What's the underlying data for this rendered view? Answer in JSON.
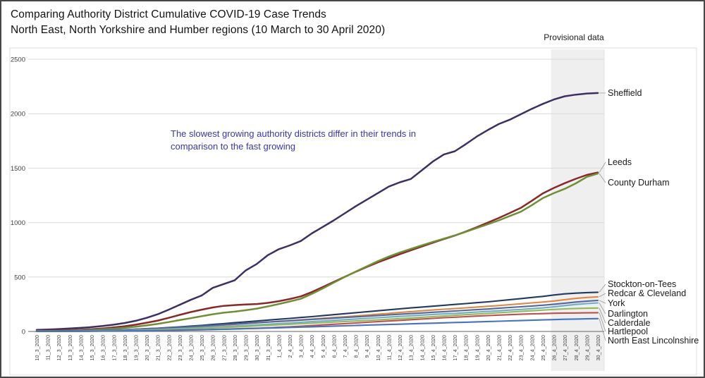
{
  "header": {
    "title_line1": "Comparing Authority District Cumulative COVID-19 Case Trends",
    "title_line2": "North East, North Yorkshire and Humber regions (10 March to 30 April 2020)"
  },
  "chart_data": {
    "type": "line",
    "title": "Comparing Authority District Cumulative COVID-19 Case Trends",
    "subtitle": "North East, North Yorkshire and Humber regions (10 March to 30 April 2020)",
    "provisional_label": "Provisional data",
    "provisional_from": "26_4_2020",
    "annotation": {
      "line1": "The slowest growing authority districts differ in their trends in",
      "line2": "comparison to the fast growing",
      "color": "#3a35a8"
    },
    "ylim": [
      0,
      2500
    ],
    "yticks": [
      0,
      500,
      1000,
      1500,
      2000,
      2500
    ],
    "grid": true,
    "legend_position": "right-labels",
    "colors": {
      "band": "#efefef",
      "grid": "#d9d9d9",
      "axis": "#7f7f7f",
      "leader": "#999999",
      "label_text": "#1a1a1a",
      "tick_text": "#3f3f3f"
    },
    "x_labels": [
      "10_3_2020",
      "11_3_2020",
      "12_3_2020",
      "13_3_2020",
      "14_3_2020",
      "15_3_2020",
      "16_3_2020",
      "17_3_2020",
      "18_3_2020",
      "19_3_2020",
      "20_3_2020",
      "21_3_2020",
      "22_3_2020",
      "23_3_2020",
      "24_3_2020",
      "25_3_2020",
      "26_3_2020",
      "27_3_2020",
      "28_3_2020",
      "29_3_2020",
      "30_3_2020",
      "31_3_2020",
      "1_4_2020",
      "2_4_2020",
      "3_4_2020",
      "4_4_2020",
      "5_4_2020",
      "6_4_2020",
      "7_4_2020",
      "8_4_2020",
      "9_4_2020",
      "10_4_2020",
      "11_4_2020",
      "12_4_2020",
      "13_4_2020",
      "14_4_2020",
      "15_4_2020",
      "16_4_2020",
      "17_4_2020",
      "18_4_2020",
      "19_4_2020",
      "20_4_2020",
      "21_4_2020",
      "22_4_2020",
      "23_4_2020",
      "24_4_2020",
      "25_4_2020",
      "26_4_2020",
      "27_4_2020",
      "28_4_2020",
      "29_4_2020",
      "30_4_2020"
    ],
    "series": [
      {
        "name": "Sheffield",
        "color": "#3e2f63",
        "values": [
          15,
          18,
          22,
          27,
          33,
          40,
          50,
          62,
          78,
          98,
          125,
          158,
          200,
          245,
          290,
          330,
          400,
          435,
          470,
          560,
          620,
          700,
          755,
          790,
          830,
          900,
          960,
          1020,
          1085,
          1150,
          1210,
          1270,
          1330,
          1370,
          1400,
          1480,
          1560,
          1625,
          1655,
          1720,
          1790,
          1850,
          1905,
          1945,
          1995,
          2045,
          2090,
          2130,
          2160,
          2175,
          2185,
          2190
        ]
      },
      {
        "name": "Leeds",
        "color": "#8b2727",
        "values": [
          5,
          7,
          9,
          12,
          16,
          21,
          28,
          37,
          48,
          62,
          80,
          100,
          125,
          152,
          178,
          200,
          220,
          235,
          242,
          248,
          252,
          262,
          278,
          298,
          322,
          362,
          408,
          455,
          502,
          548,
          592,
          634,
          672,
          710,
          745,
          780,
          815,
          848,
          880,
          918,
          958,
          1000,
          1042,
          1088,
          1135,
          1200,
          1268,
          1318,
          1362,
          1402,
          1438,
          1460
        ]
      },
      {
        "name": "County Durham",
        "color": "#6e8f33",
        "values": [
          3,
          4,
          6,
          8,
          11,
          15,
          20,
          26,
          34,
          44,
          56,
          70,
          86,
          104,
          122,
          140,
          158,
          172,
          182,
          195,
          210,
          230,
          252,
          275,
          300,
          345,
          395,
          448,
          500,
          550,
          598,
          645,
          688,
          725,
          758,
          790,
          822,
          852,
          882,
          915,
          950,
          985,
          1020,
          1060,
          1100,
          1160,
          1225,
          1270,
          1310,
          1360,
          1420,
          1450
        ]
      },
      {
        "name": "Stockton-on-Tees",
        "color": "#1f3a63",
        "values": [
          2,
          3,
          4,
          5,
          6,
          8,
          10,
          13,
          16,
          20,
          25,
          30,
          36,
          42,
          49,
          56,
          64,
          72,
          80,
          88,
          96,
          104,
          112,
          120,
          128,
          136,
          145,
          154,
          163,
          172,
          181,
          190,
          199,
          208,
          216,
          224,
          232,
          240,
          248,
          256,
          264,
          272,
          282,
          292,
          302,
          312,
          322,
          335,
          345,
          352,
          357,
          360
        ]
      },
      {
        "name": "Redcar & Cleveland",
        "color": "#e0883c",
        "values": [
          1,
          2,
          3,
          4,
          5,
          6,
          8,
          10,
          13,
          16,
          20,
          24,
          29,
          34,
          40,
          46,
          52,
          58,
          65,
          72,
          79,
          86,
          93,
          100,
          107,
          114,
          121,
          128,
          135,
          142,
          150,
          158,
          166,
          174,
          182,
          190,
          197,
          204,
          210,
          217,
          224,
          231,
          238,
          246,
          254,
          262,
          270,
          280,
          292,
          304,
          312,
          318
        ]
      },
      {
        "name": "York",
        "color": "#5565a0",
        "values": [
          2,
          3,
          4,
          5,
          7,
          9,
          11,
          14,
          17,
          21,
          25,
          29,
          34,
          39,
          44,
          50,
          56,
          62,
          68,
          74,
          80,
          86,
          92,
          98,
          104,
          110,
          116,
          122,
          128,
          134,
          140,
          146,
          152,
          158,
          164,
          170,
          176,
          182,
          188,
          194,
          200,
          206,
          213,
          220,
          227,
          234,
          241,
          250,
          260,
          270,
          278,
          285
        ]
      },
      {
        "name": "Darlington",
        "color": "#6aaecb",
        "values": [
          1,
          1,
          2,
          3,
          4,
          5,
          6,
          8,
          10,
          12,
          15,
          18,
          22,
          26,
          30,
          35,
          40,
          45,
          50,
          55,
          60,
          66,
          72,
          78,
          84,
          90,
          96,
          102,
          108,
          114,
          120,
          126,
          132,
          138,
          144,
          150,
          156,
          161,
          166,
          172,
          178,
          184,
          190,
          196,
          202,
          209,
          216,
          226,
          238,
          248,
          256,
          262
        ]
      },
      {
        "name": "Calderdale",
        "color": "#95b957",
        "values": [
          1,
          1,
          2,
          2,
          3,
          4,
          5,
          6,
          8,
          10,
          12,
          15,
          18,
          21,
          25,
          29,
          33,
          37,
          41,
          46,
          51,
          56,
          61,
          66,
          71,
          76,
          81,
          86,
          91,
          96,
          101,
          106,
          112,
          118,
          124,
          130,
          136,
          142,
          148,
          154,
          160,
          166,
          172,
          178,
          184,
          190,
          196,
          202,
          207,
          211,
          213,
          215
        ]
      },
      {
        "name": "Hartlepool",
        "color": "#c0504d",
        "values": [
          0,
          1,
          1,
          1,
          2,
          2,
          3,
          3,
          4,
          5,
          6,
          7,
          9,
          11,
          13,
          15,
          18,
          21,
          24,
          27,
          30,
          34,
          38,
          43,
          48,
          54,
          60,
          66,
          72,
          78,
          84,
          90,
          96,
          102,
          108,
          114,
          120,
          126,
          131,
          136,
          141,
          146,
          150,
          154,
          158,
          161,
          164,
          167,
          169,
          170,
          171,
          172
        ]
      },
      {
        "name": "North East Lincolnshire",
        "color": "#4472c4",
        "values": [
          0,
          1,
          1,
          2,
          2,
          3,
          3,
          4,
          5,
          6,
          7,
          8,
          10,
          12,
          14,
          16,
          18,
          20,
          22,
          25,
          28,
          31,
          34,
          37,
          40,
          43,
          46,
          49,
          52,
          55,
          58,
          61,
          64,
          67,
          70,
          73,
          76,
          79,
          82,
          85,
          88,
          91,
          94,
          97,
          100,
          103,
          106,
          109,
          112,
          114,
          116,
          118
        ]
      }
    ]
  }
}
